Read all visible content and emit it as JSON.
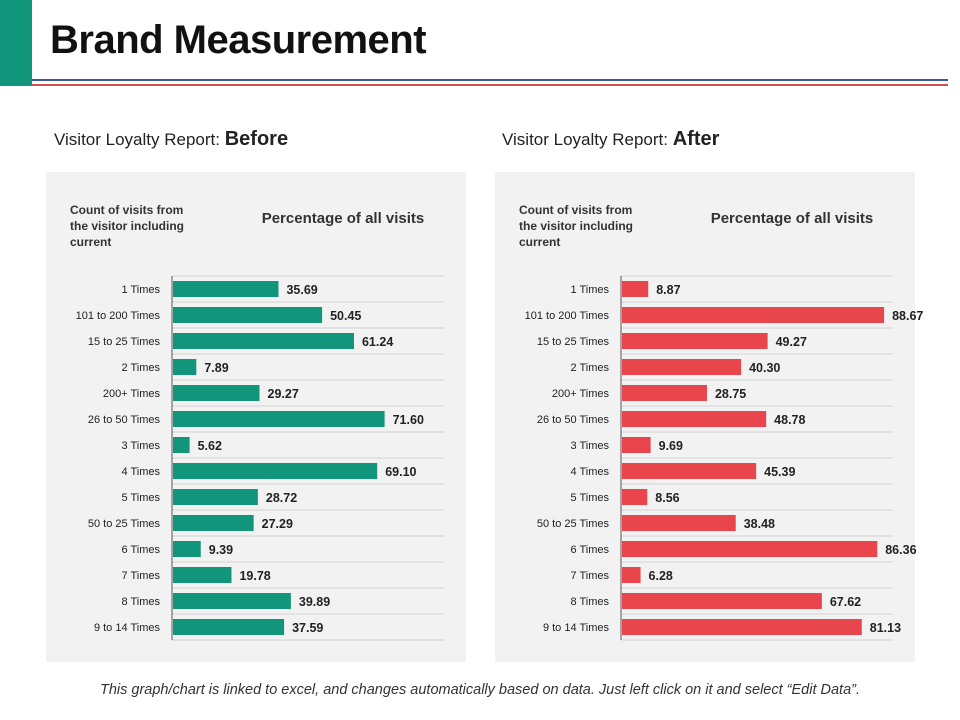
{
  "page": {
    "title": "Brand Measurement",
    "footer": "This graph/chart is linked to excel, and changes automatically based on data. Just left click on it and select “Edit Data”.",
    "accent_color": "#12967b",
    "rule_colors": [
      "#3c5a9a",
      "#d94a4a"
    ]
  },
  "chart_data": [
    {
      "type": "bar",
      "orientation": "horizontal",
      "title_prefix": "Visitor Loyalty Report: ",
      "title_emphasis": "Before",
      "category_header": "Count of visits from the visitor including current",
      "value_header": "Percentage of all visits",
      "color": "#12967b",
      "xlim": [
        0,
        90
      ],
      "categories": [
        "1 Times",
        "101 to 200 Times",
        "15 to 25 Times",
        "2 Times",
        "200+ Times",
        "26 to 50 Times",
        "3 Times",
        "4 Times",
        "5 Times",
        "50 to 25 Times",
        "6 Times",
        "7 Times",
        "8 Times",
        "9 to 14 Times"
      ],
      "values": [
        35.69,
        50.45,
        61.24,
        7.89,
        29.27,
        71.6,
        5.62,
        69.1,
        28.72,
        27.29,
        9.39,
        19.78,
        39.89,
        37.59
      ],
      "labels": [
        "35.69",
        "50.45",
        "61.24",
        "7.89",
        "29.27",
        "71.60",
        "5.62",
        "69.10",
        "28.72",
        "27.29",
        "9.39",
        "19.78",
        "39.89",
        "37.59"
      ]
    },
    {
      "type": "bar",
      "orientation": "horizontal",
      "title_prefix": "Visitor Loyalty Report: ",
      "title_emphasis": "After",
      "category_header": "Count of visits from the visitor including current",
      "value_header": "Percentage of all visits",
      "color": "#e8464c",
      "xlim": [
        0,
        90
      ],
      "categories": [
        "1 Times",
        "101 to 200 Times",
        "15 to 25 Times",
        "2 Times",
        "200+ Times",
        "26 to 50 Times",
        "3 Times",
        "4 Times",
        "5 Times",
        "50 to 25 Times",
        "6 Times",
        "7 Times",
        "8 Times",
        "9 to 14 Times"
      ],
      "values": [
        8.87,
        88.67,
        49.27,
        40.3,
        28.75,
        48.78,
        9.69,
        45.39,
        8.56,
        38.48,
        86.36,
        6.28,
        67.62,
        81.13
      ],
      "labels": [
        "8.87",
        "88.67",
        "49.27",
        "40.30",
        "28.75",
        "48.78",
        "9.69",
        "45.39",
        "8.56",
        "38.48",
        "86.36",
        "6.28",
        "67.62",
        "81.13"
      ]
    }
  ]
}
